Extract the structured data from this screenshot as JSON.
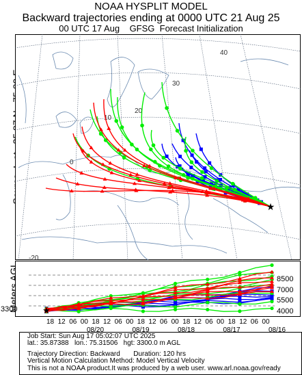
{
  "header": {
    "model_name": "NOAA HYSPLIT MODEL",
    "run_title": "Backward trajectories ending at 0000 UTC 21 Aug 25",
    "init_line": "00 UTC 17 Aug    GFSG  Forecast Initialization"
  },
  "side_labels": {
    "source_label": "Source ★ at   35.87 N   75.32 E",
    "meters_label": "Meters AGL"
  },
  "map": {
    "longitude_labels": [
      "-20",
      "0",
      "10",
      "20",
      "30",
      "40"
    ],
    "source_marker": "★"
  },
  "profile": {
    "start_height": "3300",
    "height_ticks": [
      "8500",
      "7000",
      "5500",
      "4000"
    ],
    "hour_ticks": [
      "18",
      "12",
      "06",
      "00",
      "18",
      "12",
      "06",
      "00",
      "18",
      "12",
      "06",
      "00",
      "18",
      "12",
      "06",
      "00",
      "18",
      "12",
      "06",
      "00"
    ],
    "date_ticks": [
      "08/20",
      "08/19",
      "08/18",
      "08/17",
      "08/16"
    ]
  },
  "series_colors": {
    "red": "#ff0000",
    "blue": "#0000ff",
    "green": "#00ee00"
  },
  "job_info": {
    "job_start": "Job Start: Sun Aug 17 05:02:07 UTC 2025",
    "location": "lat.: 35.87388   lon.: 75.31506   hgt: 3300.0 m AGL",
    "direction": "Trajectory Direction: Backward       Duration: 120 hrs",
    "vertical": "Vertical Motion Calculation Method: Model Vertical Velocity",
    "disclaimer": "This is not a NOAA product.It was produced by a web user. www.arl.noaa.gov/ready"
  }
}
